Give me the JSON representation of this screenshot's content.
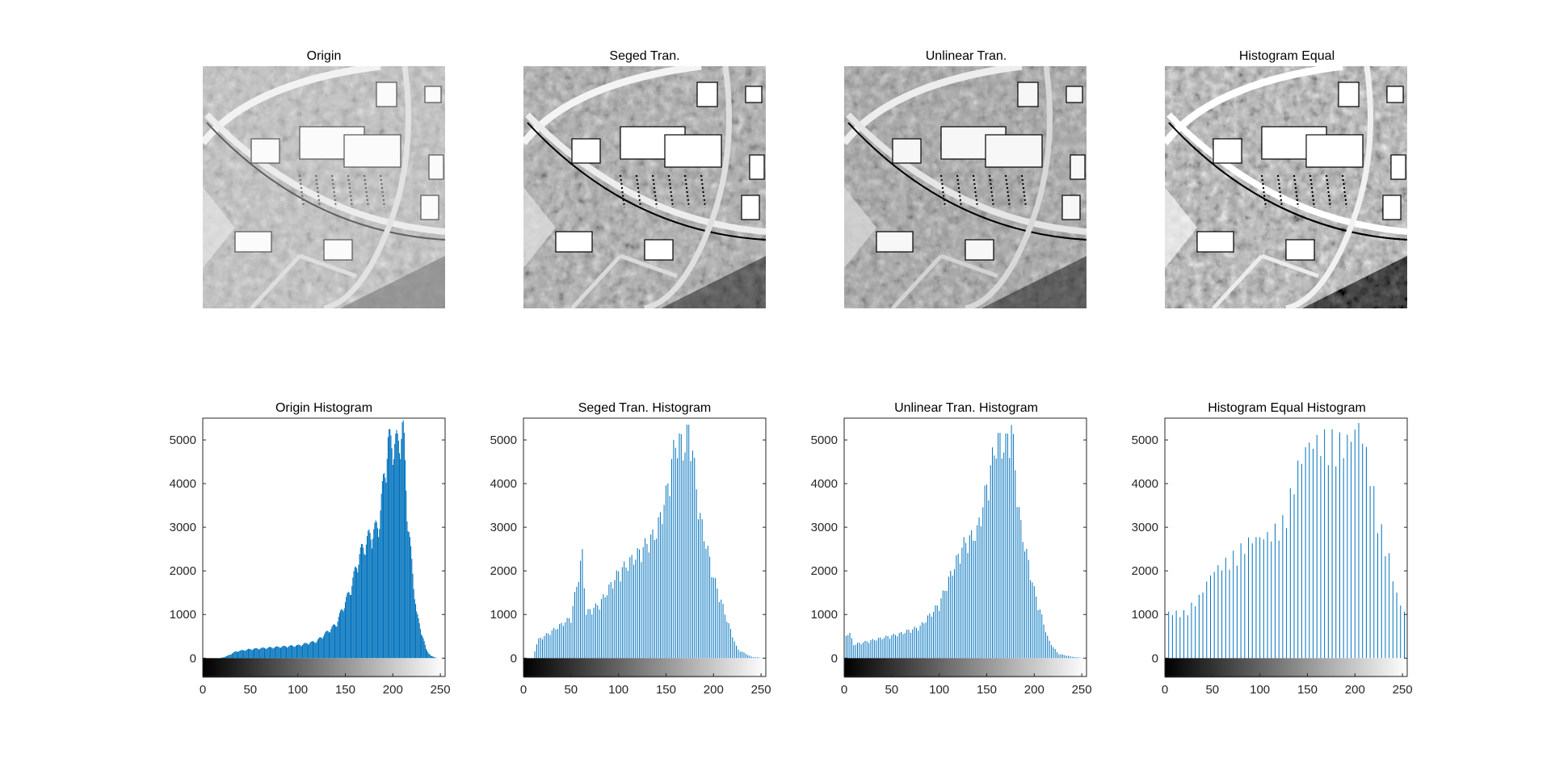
{
  "figure": {
    "images": [
      {
        "title": "Origin",
        "contrast": 1.0,
        "brightness": 0.05
      },
      {
        "title": "Seged Tran.",
        "contrast": 1.35,
        "brightness": -0.05
      },
      {
        "title": "Unlinear Tran.",
        "contrast": 1.25,
        "brightness": -0.08
      },
      {
        "title": "Histogram Equal",
        "contrast": 1.8,
        "brightness": 0.0
      }
    ],
    "colors": {
      "bar": "#0072BD",
      "axis": "#262626",
      "background": "#ffffff"
    }
  },
  "chart_data": [
    {
      "type": "bar",
      "title": "Origin Histogram",
      "xlabel": "",
      "ylabel": "",
      "xlim": [
        0,
        255
      ],
      "ylim": [
        -420,
        5500
      ],
      "xticks": [
        0,
        50,
        100,
        150,
        200,
        250
      ],
      "yticks": [
        0,
        1000,
        2000,
        3000,
        4000,
        5000
      ],
      "colorbar": "gray-gradient-under-x-axis",
      "bar_step": 1,
      "profile": [
        [
          0,
          0
        ],
        [
          18,
          0
        ],
        [
          25,
          40
        ],
        [
          35,
          150
        ],
        [
          50,
          200
        ],
        [
          80,
          250
        ],
        [
          100,
          280
        ],
        [
          120,
          380
        ],
        [
          140,
          750
        ],
        [
          155,
          1500
        ],
        [
          165,
          2300
        ],
        [
          175,
          2700
        ],
        [
          185,
          2950
        ],
        [
          195,
          4800
        ],
        [
          205,
          4750
        ],
        [
          211,
          5150
        ],
        [
          216,
          3000
        ],
        [
          225,
          1000
        ],
        [
          235,
          200
        ],
        [
          240,
          50
        ],
        [
          247,
          0
        ],
        [
          255,
          0
        ]
      ]
    },
    {
      "type": "bar",
      "title": "Seged Tran. Histogram",
      "xlabel": "",
      "ylabel": "",
      "xlim": [
        0,
        255
      ],
      "ylim": [
        -420,
        5500
      ],
      "xticks": [
        0,
        50,
        100,
        150,
        200,
        250
      ],
      "yticks": [
        0,
        1000,
        2000,
        3000,
        4000,
        5000
      ],
      "colorbar": "gray-gradient-under-x-axis",
      "bar_step": 2,
      "profile": [
        [
          0,
          0
        ],
        [
          10,
          0
        ],
        [
          15,
          400
        ],
        [
          30,
          600
        ],
        [
          50,
          900
        ],
        [
          55,
          1500
        ],
        [
          62,
          2300
        ],
        [
          66,
          1000
        ],
        [
          80,
          1200
        ],
        [
          100,
          1900
        ],
        [
          120,
          2300
        ],
        [
          140,
          2800
        ],
        [
          150,
          3600
        ],
        [
          160,
          4800
        ],
        [
          170,
          4700
        ],
        [
          175,
          5150
        ],
        [
          185,
          3200
        ],
        [
          200,
          1800
        ],
        [
          215,
          800
        ],
        [
          225,
          200
        ],
        [
          240,
          30
        ],
        [
          255,
          0
        ]
      ]
    },
    {
      "type": "bar",
      "title": "Unlinear Tran. Histogram",
      "xlabel": "",
      "ylabel": "",
      "xlim": [
        0,
        255
      ],
      "ylim": [
        -420,
        5500
      ],
      "xticks": [
        0,
        50,
        100,
        150,
        200,
        250
      ],
      "yticks": [
        0,
        1000,
        2000,
        3000,
        4000,
        5000
      ],
      "colorbar": "gray-gradient-under-x-axis",
      "bar_step": 2,
      "profile": [
        [
          0,
          0
        ],
        [
          2,
          500
        ],
        [
          5,
          600
        ],
        [
          10,
          300
        ],
        [
          30,
          400
        ],
        [
          60,
          550
        ],
        [
          80,
          700
        ],
        [
          100,
          1200
        ],
        [
          115,
          2000
        ],
        [
          125,
          2500
        ],
        [
          140,
          2800
        ],
        [
          150,
          3800
        ],
        [
          160,
          4800
        ],
        [
          170,
          4700
        ],
        [
          176,
          5150
        ],
        [
          185,
          3000
        ],
        [
          200,
          1500
        ],
        [
          215,
          400
        ],
        [
          225,
          100
        ],
        [
          240,
          30
        ],
        [
          255,
          0
        ]
      ]
    },
    {
      "type": "bar",
      "title": "Histogram Equal Histogram",
      "xlabel": "",
      "ylabel": "",
      "xlim": [
        0,
        255
      ],
      "ylim": [
        -420,
        5500
      ],
      "xticks": [
        0,
        50,
        100,
        150,
        200,
        250
      ],
      "yticks": [
        0,
        1000,
        2000,
        3000,
        4000,
        5000
      ],
      "colorbar": "gray-gradient-under-x-axis",
      "bar_step": 4,
      "profile": [
        [
          0,
          1000
        ],
        [
          20,
          1000
        ],
        [
          35,
          1300
        ],
        [
          50,
          1900
        ],
        [
          70,
          2200
        ],
        [
          90,
          2600
        ],
        [
          110,
          2700
        ],
        [
          125,
          3000
        ],
        [
          140,
          4200
        ],
        [
          150,
          4700
        ],
        [
          170,
          4800
        ],
        [
          190,
          4700
        ],
        [
          205,
          5150
        ],
        [
          215,
          4200
        ],
        [
          225,
          3000
        ],
        [
          235,
          2300
        ],
        [
          245,
          1300
        ],
        [
          255,
          900
        ]
      ]
    }
  ]
}
